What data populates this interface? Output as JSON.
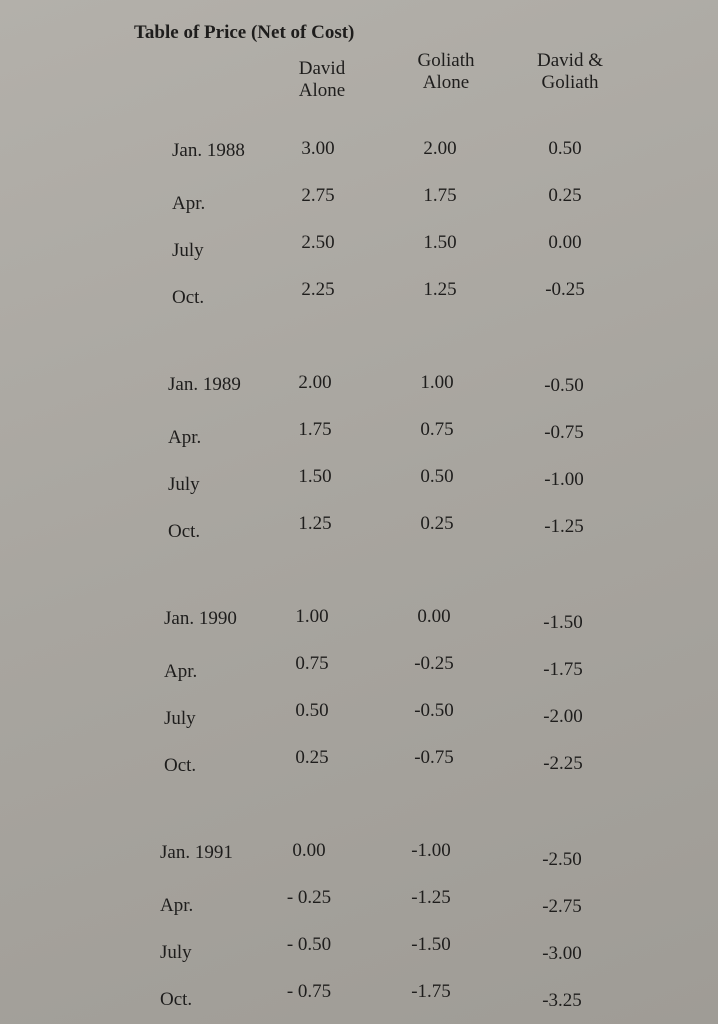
{
  "header": {
    "title": "Table of Price (Net of Cost)"
  },
  "table": {
    "columns": [
      [
        "David",
        "Alone"
      ],
      [
        "Goliath",
        "Alone"
      ],
      [
        "David &",
        "Goliath"
      ]
    ],
    "rows": [
      [
        "Jan. 1988",
        "3.00",
        "2.00",
        "0.50"
      ],
      [
        "Apr.",
        "2.75",
        "1.75",
        "0.25"
      ],
      [
        "July",
        "2.50",
        "1.50",
        "0.00"
      ],
      [
        "Oct.",
        "2.25",
        "1.25",
        "-0.25"
      ],
      [
        "Jan. 1989",
        "2.00",
        "1.00",
        "-0.50"
      ],
      [
        "Apr.",
        "1.75",
        "0.75",
        "-0.75"
      ],
      [
        "July",
        "1.50",
        "0.50",
        "-1.00"
      ],
      [
        "Oct.",
        "1.25",
        "0.25",
        "-1.25"
      ],
      [
        "Jan. 1990",
        "1.00",
        "0.00",
        "-1.50"
      ],
      [
        "Apr.",
        "0.75",
        "-0.25",
        "-1.75"
      ],
      [
        "July",
        "0.50",
        "-0.50",
        "-2.00"
      ],
      [
        "Oct.",
        "0.25",
        "-0.75",
        "-2.25"
      ],
      [
        "Jan. 1991",
        "0.00",
        "-1.00",
        "-2.50"
      ],
      [
        "Apr.",
        "- 0.25",
        "-1.25",
        "-2.75"
      ],
      [
        "July",
        "- 0.50",
        "-1.50",
        "-3.00"
      ],
      [
        "Oct.",
        "- 0.75",
        "-1.75",
        "-3.25"
      ]
    ]
  }
}
